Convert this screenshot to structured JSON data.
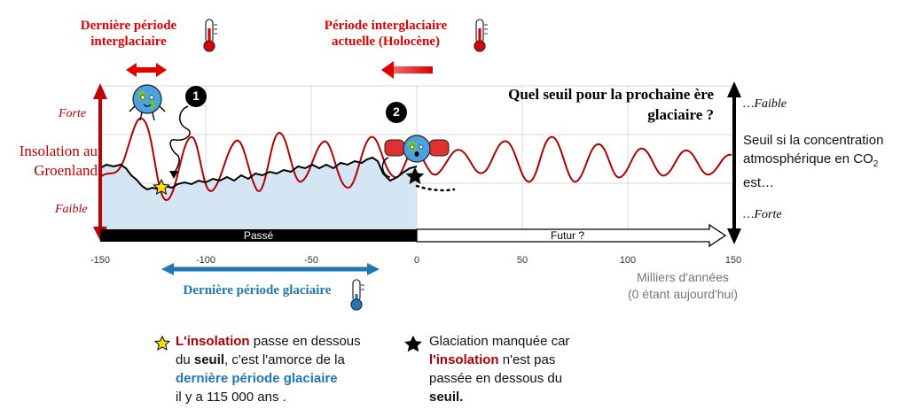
{
  "labels": {
    "last_interglacial": [
      "Dernière période",
      "interglaciaire"
    ],
    "current_interglacial": [
      "Période interglaciaire",
      "actuelle (Holocène)"
    ],
    "last_glacial": "Dernière période glaciaire",
    "insolation_axis": [
      "Insolation au",
      "Groenland"
    ],
    "strong_left": "Forte",
    "weak_left": "Faible",
    "question": [
      "Quel seuil pour la prochaine ère",
      "glaciaire ?"
    ],
    "right_weak": "…Faible",
    "right_strong": "…Forte",
    "threshold_text": [
      "Seuil si la concentration",
      "atmosphérique en CO",
      "2",
      "est…"
    ],
    "past": "Passé",
    "future": "Futur ?",
    "x_unit": [
      "Milliers d'années",
      "(0 étant aujourd'hui)"
    ],
    "marker1": "1",
    "marker2": "2"
  },
  "x_ticks": [
    "-150",
    "-100",
    "-50",
    "0",
    "50",
    "100",
    "150"
  ],
  "legend_left": {
    "line1_red": "L'insolation",
    "line1_rest": " passe en dessous",
    "line2_pre": "du ",
    "line2_bold": "seuil",
    "line2_rest": ", c'est l'amorce de la",
    "line3_blue": "dernière période glaciaire",
    "line4": "il y a 115 000 ans ."
  },
  "legend_right": {
    "line1": "Glaciation manquée car",
    "line2_red": "l'insolation",
    "line2_rest": " n'est pas",
    "line3": "passée en dessous du",
    "line4_bold": "seuil."
  },
  "colors": {
    "insolation": "#b00000",
    "threshold": "#000000",
    "glacial_fill": "#cfe2f3",
    "interglacial_arrow": "#e00000",
    "glacial_arrow": "#1f77b4"
  },
  "icons": [
    "thermometer-hot-icon",
    "thermometer-cold-icon",
    "earth-character-icon",
    "star-yellow-icon",
    "star-black-icon"
  ]
}
